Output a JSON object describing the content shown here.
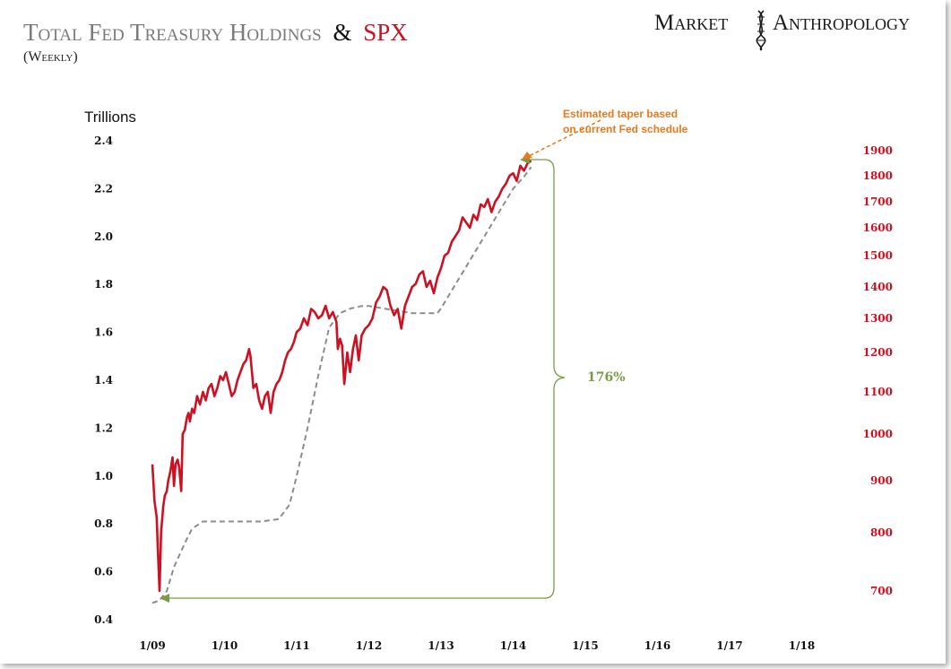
{
  "header": {
    "title_part1": "Total Fed Treasury Holdings",
    "title_amp": "&",
    "title_part2": "SPX",
    "subtitle": "(Weekly)"
  },
  "brand": {
    "word1": "Market",
    "word2": "Anthropology"
  },
  "colors": {
    "spx": "#cc1122",
    "treasury": "#8c8c8c",
    "title_gray": "#7a7a7a",
    "annotation_orange": "#e87a1e",
    "bracket_green": "#7a9a45"
  },
  "chart_data": {
    "type": "line",
    "ylabel": "Trillions",
    "x_ticks": [
      "1/09",
      "1/10",
      "1/11",
      "1/12",
      "1/13",
      "1/14",
      "1/15",
      "1/16",
      "1/17",
      "1/18"
    ],
    "xlim": [
      2009.0,
      2018.0
    ],
    "left_axis": {
      "ylim": [
        0.4,
        2.4
      ],
      "ticks": [
        "2.4",
        "2.2",
        "2.0",
        "1.8",
        "1.6",
        "1.4",
        "1.2",
        "1.0",
        "0.8",
        "0.6",
        "0.4"
      ]
    },
    "right_axis": {
      "ticks": [
        "1900",
        "1800",
        "1700",
        "1600",
        "1500",
        "1400",
        "1300",
        "1200",
        "1100",
        "1000",
        "900",
        "800",
        "700"
      ]
    },
    "series": [
      {
        "key": "treasury",
        "style": "dashed",
        "x": [
          2009.0,
          2009.1,
          2009.2,
          2009.3,
          2009.45,
          2009.55,
          2009.7,
          2010.0,
          2010.5,
          2010.75,
          2010.9,
          2011.0,
          2011.15,
          2011.3,
          2011.45,
          2011.6,
          2011.75,
          2011.9,
          2012.0,
          2012.2,
          2012.4,
          2012.6,
          2012.8,
          2012.95,
          2013.0,
          2013.2,
          2013.4,
          2013.6,
          2013.8,
          2014.0,
          2014.15,
          2014.25
        ],
        "values": [
          0.47,
          0.48,
          0.52,
          0.62,
          0.72,
          0.78,
          0.81,
          0.81,
          0.81,
          0.82,
          0.88,
          1.0,
          1.2,
          1.42,
          1.62,
          1.68,
          1.7,
          1.71,
          1.71,
          1.7,
          1.69,
          1.68,
          1.68,
          1.68,
          1.7,
          1.8,
          1.9,
          2.0,
          2.1,
          2.2,
          2.25,
          2.29
        ]
      },
      {
        "key": "spx",
        "style": "solid",
        "x": [
          2009.0,
          2009.03,
          2009.06,
          2009.08,
          2009.1,
          2009.12,
          2009.15,
          2009.17,
          2009.2,
          2009.22,
          2009.25,
          2009.28,
          2009.3,
          2009.32,
          2009.35,
          2009.37,
          2009.4,
          2009.42,
          2009.45,
          2009.48,
          2009.5,
          2009.52,
          2009.55,
          2009.58,
          2009.62,
          2009.66,
          2009.7,
          2009.74,
          2009.78,
          2009.82,
          2009.86,
          2009.9,
          2009.94,
          2009.98,
          2010.02,
          2010.06,
          2010.1,
          2010.14,
          2010.18,
          2010.22,
          2010.26,
          2010.3,
          2010.34,
          2010.36,
          2010.4,
          2010.44,
          2010.48,
          2010.52,
          2010.56,
          2010.6,
          2010.64,
          2010.68,
          2010.72,
          2010.76,
          2010.8,
          2010.84,
          2010.88,
          2010.92,
          2010.96,
          2011.0,
          2011.05,
          2011.1,
          2011.15,
          2011.2,
          2011.25,
          2011.3,
          2011.35,
          2011.4,
          2011.45,
          2011.5,
          2011.55,
          2011.57,
          2011.6,
          2011.63,
          2011.66,
          2011.7,
          2011.74,
          2011.78,
          2011.82,
          2011.86,
          2011.9,
          2011.95,
          2012.0,
          2012.05,
          2012.1,
          2012.15,
          2012.2,
          2012.25,
          2012.3,
          2012.35,
          2012.4,
          2012.45,
          2012.5,
          2012.55,
          2012.6,
          2012.65,
          2012.7,
          2012.75,
          2012.8,
          2012.85,
          2012.9,
          2012.95,
          2013.0,
          2013.05,
          2013.1,
          2013.15,
          2013.2,
          2013.25,
          2013.3,
          2013.35,
          2013.4,
          2013.45,
          2013.5,
          2013.55,
          2013.6,
          2013.65,
          2013.7,
          2013.75,
          2013.8,
          2013.85,
          2013.9,
          2013.95,
          2014.0,
          2014.05,
          2014.1,
          2014.15,
          2014.2,
          2014.25
        ],
        "values": [
          935,
          860,
          830,
          760,
          700,
          800,
          850,
          870,
          880,
          900,
          920,
          950,
          890,
          935,
          945,
          930,
          880,
          1000,
          1010,
          1040,
          1050,
          1030,
          1060,
          1050,
          1090,
          1070,
          1100,
          1080,
          1110,
          1120,
          1090,
          1110,
          1140,
          1130,
          1150,
          1120,
          1090,
          1100,
          1130,
          1150,
          1170,
          1180,
          1210,
          1190,
          1110,
          1120,
          1080,
          1060,
          1090,
          1100,
          1050,
          1100,
          1120,
          1130,
          1150,
          1180,
          1200,
          1210,
          1230,
          1260,
          1270,
          1300,
          1280,
          1330,
          1320,
          1300,
          1310,
          1340,
          1300,
          1320,
          1290,
          1210,
          1240,
          1220,
          1120,
          1200,
          1150,
          1210,
          1250,
          1180,
          1250,
          1270,
          1280,
          1300,
          1350,
          1370,
          1400,
          1390,
          1340,
          1310,
          1330,
          1270,
          1340,
          1370,
          1400,
          1410,
          1440,
          1450,
          1400,
          1420,
          1380,
          1430,
          1460,
          1500,
          1510,
          1550,
          1570,
          1590,
          1640,
          1620,
          1600,
          1650,
          1630,
          1690,
          1680,
          1710,
          1660,
          1700,
          1720,
          1750,
          1770,
          1800,
          1810,
          1780,
          1840,
          1820,
          1850,
          1860
        ]
      }
    ]
  },
  "annotations": {
    "taper_line1": "Estimated taper based",
    "taper_line2": "on current Fed schedule",
    "pct_label": "176%"
  }
}
